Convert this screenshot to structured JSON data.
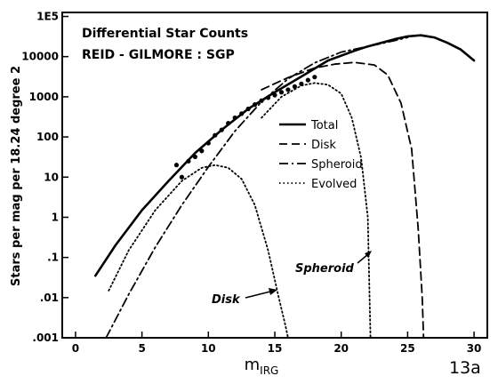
{
  "chart_data": {
    "type": "line",
    "title_lines": [
      "Differential Star Counts",
      "REID - GILMORE : SGP"
    ],
    "xlabel": "m",
    "xlabel_sub": "IRG",
    "ylabel": "Stars per mag per 18.24 degree 2",
    "xlim": [
      -1,
      31
    ],
    "ylim_log10": [
      -3,
      5.1
    ],
    "log_scale_y": true,
    "grid": false,
    "legend_position": "center-right",
    "x_ticks": [
      {
        "value": 0,
        "label": "0"
      },
      {
        "value": 5,
        "label": "5"
      },
      {
        "value": 10,
        "label": "10"
      },
      {
        "value": 15,
        "label": "15"
      },
      {
        "value": 20,
        "label": "20"
      },
      {
        "value": 25,
        "label": "25"
      },
      {
        "value": 30,
        "label": "30"
      }
    ],
    "y_ticks": [
      {
        "value": 100000,
        "label": "1E5"
      },
      {
        "value": 10000,
        "label": "10000"
      },
      {
        "value": 1000,
        "label": "1000"
      },
      {
        "value": 100,
        "label": "100"
      },
      {
        "value": 10,
        "label": "10"
      },
      {
        "value": 1,
        "label": "1"
      },
      {
        "value": 0.1,
        "label": ".1"
      },
      {
        "value": 0.01,
        "label": ".01"
      },
      {
        "value": 0.001,
        "label": ".001"
      }
    ],
    "series": [
      {
        "name": "Total",
        "style": "solid",
        "x": [
          1.5,
          3,
          5,
          7,
          9,
          11,
          13,
          15,
          17,
          19,
          21,
          22,
          23,
          24,
          25,
          26,
          27,
          28,
          29,
          30
        ],
        "y": [
          0.035,
          0.2,
          1.5,
          8,
          40,
          150,
          500,
          1300,
          3200,
          8000,
          14000,
          18000,
          22000,
          27000,
          32000,
          34000,
          30000,
          22000,
          15000,
          8000
        ]
      },
      {
        "name": "Disk",
        "style": "dashed",
        "x": [
          14,
          16,
          18,
          19.5,
          21,
          22.5,
          23.5,
          24.5,
          25.3,
          25.8,
          26.1,
          26.2
        ],
        "y": [
          1500,
          3000,
          5200,
          6500,
          7200,
          6200,
          3500,
          700,
          50,
          0.5,
          0.01,
          0.001
        ]
      },
      {
        "name": "Spheroid",
        "style": "dash-dot",
        "x": [
          2.3,
          4,
          6,
          8,
          10,
          12,
          14,
          16,
          18,
          20,
          22,
          23,
          24,
          25
        ],
        "y": [
          0.001,
          0.012,
          0.18,
          2,
          18,
          140,
          750,
          2800,
          7000,
          13000,
          18000,
          21000,
          25000,
          30000
        ]
      },
      {
        "name": "Disk",
        "group": "Evolved",
        "style": "dotted",
        "x": [
          2.5,
          4,
          6,
          8,
          9.5,
          10.5,
          11.5,
          12.5,
          13.5,
          14.5,
          15.3,
          15.8,
          16
        ],
        "y": [
          0.015,
          0.15,
          1.5,
          8,
          17,
          20,
          17,
          9,
          2,
          0.15,
          0.01,
          0.002,
          0.001
        ]
      },
      {
        "name": "Spheroid",
        "group": "Evolved",
        "style": "dotted",
        "x": [
          14,
          15.5,
          17,
          18,
          19,
          20,
          20.8,
          21.5,
          22,
          22.2
        ],
        "y": [
          300,
          1000,
          1900,
          2200,
          2000,
          1200,
          300,
          30,
          1,
          0.001
        ]
      }
    ],
    "observed_points": {
      "x": [
        7.6,
        8.0,
        8.5,
        9.0,
        9.5,
        10.0,
        10.5,
        11.0,
        11.5,
        12.0,
        12.5,
        13.0,
        13.5,
        14.0,
        14.5,
        15.0,
        15.5,
        16.0,
        16.5,
        17.0,
        17.5,
        18.0
      ],
      "y": [
        20,
        10,
        25,
        32,
        45,
        70,
        110,
        150,
        220,
        300,
        380,
        500,
        640,
        800,
        950,
        1100,
        1300,
        1500,
        1800,
        2100,
        2600,
        3100
      ]
    },
    "legend": [
      {
        "label": "Total",
        "style": "solid"
      },
      {
        "label": "Disk",
        "style": "dashed"
      },
      {
        "label": "Spheroid",
        "style": "dash-dot"
      },
      {
        "label": "Evolved",
        "style": "dotted"
      }
    ],
    "annotations": [
      {
        "text": "Spheroid",
        "points_to": "evolved spheroid curve"
      },
      {
        "text": "Disk",
        "points_to": "evolved disk curve"
      }
    ],
    "figure_label": "13a"
  }
}
